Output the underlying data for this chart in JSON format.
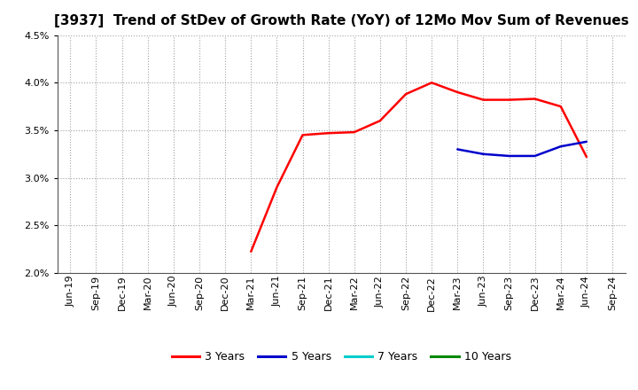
{
  "title": "[3937]  Trend of StDev of Growth Rate (YoY) of 12Mo Mov Sum of Revenues",
  "ylim": [
    0.02,
    0.045
  ],
  "yticks": [
    0.02,
    0.025,
    0.03,
    0.035,
    0.04,
    0.045
  ],
  "background_color": "#ffffff",
  "grid_color": "#a0a0a0",
  "series": {
    "3y": {
      "color": "#ff0000",
      "linewidth": 1.8,
      "x": [
        "Mar-21",
        "Jun-21",
        "Sep-21",
        "Dec-21",
        "Mar-22",
        "Jun-22",
        "Sep-22",
        "Dec-22",
        "Mar-23",
        "Jun-23",
        "Sep-23",
        "Dec-23",
        "Mar-24",
        "Jun-24"
      ],
      "y": [
        0.02225,
        0.029,
        0.0345,
        0.0347,
        0.0348,
        0.036,
        0.0388,
        0.04,
        0.039,
        0.0382,
        0.0382,
        0.0383,
        0.0375,
        0.0322
      ]
    },
    "5y": {
      "color": "#0000cc",
      "linewidth": 1.8,
      "x": [
        "Mar-23",
        "Jun-23",
        "Sep-23",
        "Dec-23",
        "Mar-24",
        "Jun-24"
      ],
      "y": [
        0.033,
        0.0325,
        0.0323,
        0.0323,
        0.0333,
        0.0338
      ]
    },
    "7y": {
      "color": "#00cccc",
      "linewidth": 1.8,
      "x": [],
      "y": []
    },
    "10y": {
      "color": "#008800",
      "linewidth": 1.8,
      "x": [],
      "y": []
    }
  },
  "xtick_labels": [
    "Jun-19",
    "Sep-19",
    "Dec-19",
    "Mar-20",
    "Jun-20",
    "Sep-20",
    "Dec-20",
    "Mar-21",
    "Jun-21",
    "Sep-21",
    "Dec-21",
    "Mar-22",
    "Jun-22",
    "Sep-22",
    "Dec-22",
    "Mar-23",
    "Jun-23",
    "Sep-23",
    "Dec-23",
    "Mar-24",
    "Jun-24",
    "Sep-24"
  ],
  "legend": [
    {
      "label": "3 Years",
      "color": "#ff0000"
    },
    {
      "label": "5 Years",
      "color": "#0000cc"
    },
    {
      "label": "7 Years",
      "color": "#00cccc"
    },
    {
      "label": "10 Years",
      "color": "#008800"
    }
  ],
  "title_fontsize": 11,
  "tick_fontsize": 8,
  "legend_fontsize": 9
}
